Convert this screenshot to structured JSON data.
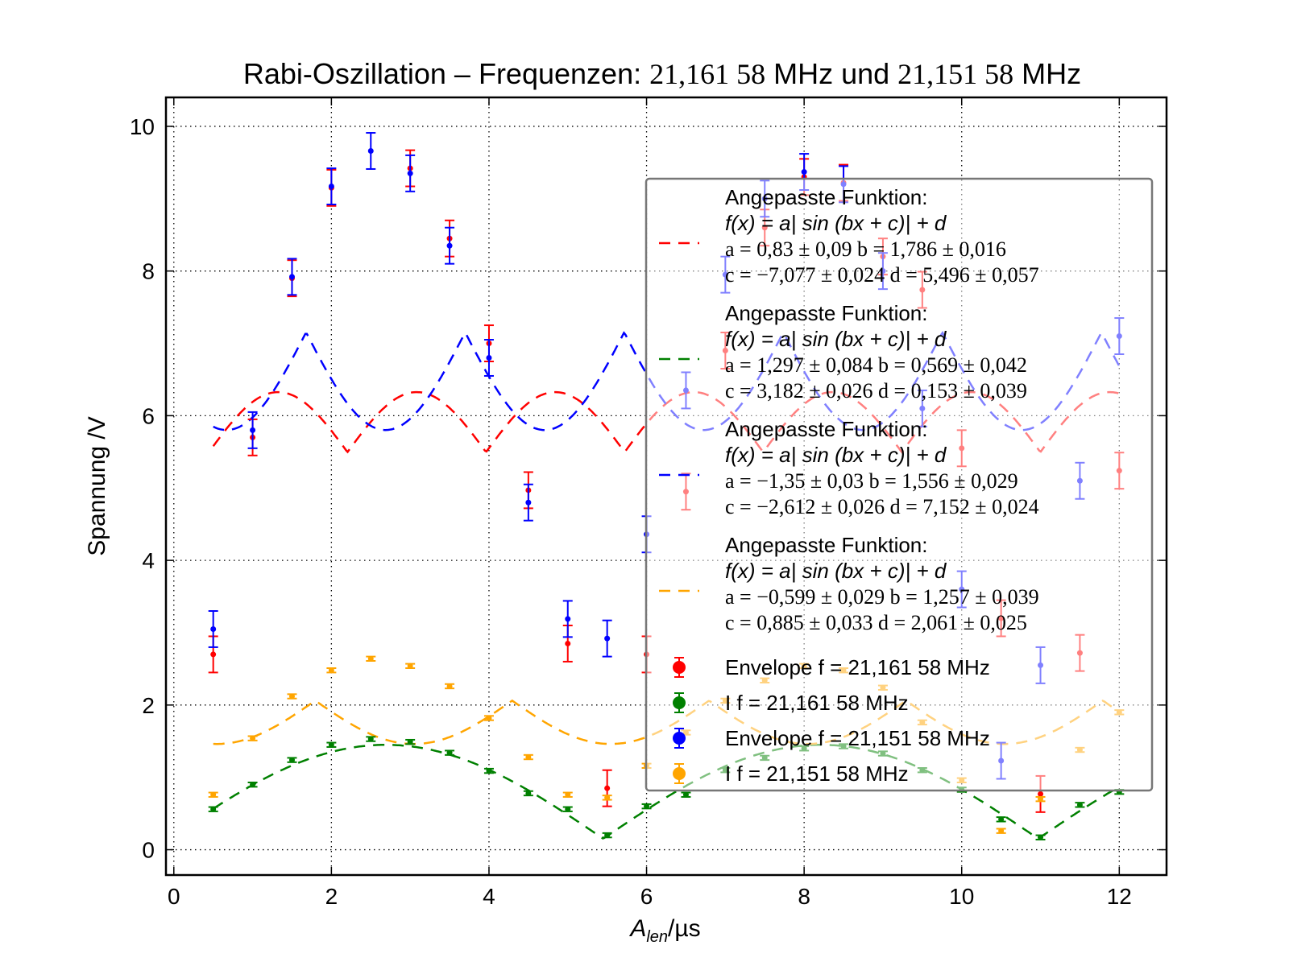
{
  "chart_data": {
    "type": "scatter",
    "title": "Rabi-Oszillation – Frequenzen: 21,161 58 MHz und 21,151 58 MHz",
    "title_parts": {
      "prefix": "Rabi-Oszillation – Frequenzen: ",
      "f1": "21,161 58",
      "unit1": " MHz und ",
      "f2": "21,151 58",
      "unit2": " MHz"
    },
    "xlabel": "A_len/µs",
    "xlabel_parts": {
      "var": "A",
      "sub": "len",
      "unit": "/µs"
    },
    "ylabel": "Spannung /V",
    "xlim": [
      -0.1,
      12.6
    ],
    "ylim": [
      -0.35,
      10.4
    ],
    "x_ticks": [
      "0",
      "2",
      "4",
      "6",
      "8",
      "10",
      "12"
    ],
    "y_ticks": [
      "0",
      "2",
      "4",
      "6",
      "8",
      "10"
    ],
    "grid": true,
    "legend_position": "right",
    "series": [
      {
        "name": "Envelope f = 21,161 58 MHz",
        "color": "#ff0000",
        "x": [
          0.5,
          1.0,
          1.5,
          2.0,
          3.0,
          3.5,
          4.0,
          4.5,
          5.0,
          5.5,
          6.0,
          6.5,
          7.0,
          7.5,
          8.0,
          8.5,
          9.0,
          9.5,
          10.0,
          10.5,
          11.0,
          11.5,
          12.0
        ],
        "y": [
          2.7,
          5.7,
          7.9,
          9.15,
          9.42,
          8.45,
          7.0,
          4.97,
          2.85,
          0.85,
          2.7,
          4.95,
          6.9,
          8.6,
          9.3,
          9.22,
          8.2,
          7.74,
          5.55,
          3.2,
          0.77,
          2.72,
          5.24
        ],
        "yerr": [
          0.25,
          0.25,
          0.25,
          0.25,
          0.25,
          0.25,
          0.25,
          0.25,
          0.25,
          0.25,
          0.25,
          0.25,
          0.25,
          0.25,
          0.25,
          0.25,
          0.25,
          0.25,
          0.25,
          0.25,
          0.25,
          0.25,
          0.25
        ]
      },
      {
        "name": "I f = 21,161 58 MHz",
        "color": "#008000",
        "x": [
          0.5,
          1.0,
          1.5,
          2.0,
          2.5,
          3.0,
          3.5,
          4.0,
          4.5,
          5.0,
          5.5,
          6.0,
          6.5,
          7.0,
          7.5,
          8.0,
          8.5,
          9.0,
          9.5,
          10.0,
          10.5,
          11.0,
          11.5,
          12.0
        ],
        "y": [
          0.56,
          0.9,
          1.24,
          1.45,
          1.53,
          1.49,
          1.34,
          1.09,
          0.78,
          0.56,
          0.2,
          0.6,
          0.76,
          1.1,
          1.27,
          1.4,
          1.43,
          1.33,
          1.1,
          0.83,
          0.42,
          0.17,
          0.62,
          0.8
        ],
        "yerr": [
          0.03,
          0.03,
          0.03,
          0.03,
          0.03,
          0.03,
          0.03,
          0.03,
          0.03,
          0.03,
          0.03,
          0.03,
          0.03,
          0.03,
          0.03,
          0.03,
          0.03,
          0.03,
          0.03,
          0.03,
          0.03,
          0.03,
          0.03,
          0.03
        ]
      },
      {
        "name": "Envelope f = 21,151 58 MHz",
        "color": "#0000ff",
        "x": [
          0.5,
          1.0,
          1.5,
          2.0,
          2.5,
          3.0,
          3.5,
          4.0,
          4.5,
          5.0,
          5.5,
          6.0,
          6.5,
          7.0,
          7.5,
          8.0,
          8.5,
          9.0,
          9.5,
          10.0,
          10.5,
          11.0,
          11.5,
          12.0
        ],
        "y": [
          3.05,
          5.8,
          7.92,
          9.17,
          9.66,
          9.35,
          8.35,
          6.8,
          4.8,
          3.19,
          2.92,
          4.36,
          6.35,
          7.95,
          9.0,
          9.37,
          9.2,
          8.0,
          6.1,
          3.6,
          1.23,
          2.55,
          5.1,
          7.1
        ],
        "yerr": [
          0.25,
          0.25,
          0.25,
          0.25,
          0.25,
          0.25,
          0.25,
          0.25,
          0.25,
          0.25,
          0.25,
          0.25,
          0.25,
          0.25,
          0.25,
          0.25,
          0.25,
          0.25,
          0.25,
          0.25,
          0.25,
          0.25,
          0.25,
          0.25
        ]
      },
      {
        "name": "I f = 21,151 58 MHz",
        "color": "#ffa500",
        "x": [
          0.5,
          1.0,
          1.5,
          2.0,
          2.5,
          3.0,
          3.5,
          4.0,
          4.5,
          5.0,
          5.5,
          6.0,
          6.5,
          7.0,
          7.5,
          8.0,
          8.5,
          9.0,
          9.5,
          10.0,
          10.5,
          11.0,
          11.5,
          12.0
        ],
        "y": [
          0.76,
          1.54,
          2.12,
          2.48,
          2.64,
          2.54,
          2.26,
          1.82,
          1.28,
          0.76,
          0.72,
          1.16,
          1.62,
          2.06,
          2.34,
          2.54,
          2.48,
          2.24,
          1.76,
          0.96,
          0.26,
          0.7,
          1.38,
          1.9
        ],
        "yerr": [
          0.03,
          0.03,
          0.03,
          0.03,
          0.03,
          0.03,
          0.03,
          0.03,
          0.03,
          0.03,
          0.03,
          0.03,
          0.03,
          0.03,
          0.03,
          0.03,
          0.03,
          0.03,
          0.03,
          0.03,
          0.03,
          0.03,
          0.03,
          0.03
        ]
      }
    ],
    "fits": [
      {
        "color": "#ff0000",
        "a": 0.83,
        "b": 1.786,
        "c": -7.077,
        "d": 5.496
      },
      {
        "color": "#008000",
        "a": 1.297,
        "b": 0.569,
        "c": 3.182,
        "d": 0.153
      },
      {
        "color": "#0000ff",
        "a": -1.35,
        "b": 1.556,
        "c": -2.612,
        "d": 7.152
      },
      {
        "color": "#ffa500",
        "a": -0.599,
        "b": 1.257,
        "c": 0.885,
        "d": 2.061
      }
    ],
    "fit_x_range": [
      0.5,
      12.0
    ],
    "legend": {
      "fit_entries": [
        {
          "title": "Angepasste Funktion:",
          "formula": "f(x) = a| sin (bx + c)| + d",
          "line1": "a = 0,83 ± 0,09     b = 1,786 ± 0,016",
          "line2": "c = −7,077 ± 0,024     d = 5,496 ± 0,057"
        },
        {
          "title": "Angepasste Funktion:",
          "formula": "f(x) = a| sin (bx + c)| + d",
          "line1": "a = 1,297 ± 0,084     b = 0,569 ± 0,042",
          "line2": "c = 3,182 ± 0,026     d = 0,153 ± 0,039"
        },
        {
          "title": "Angepasste Funktion:",
          "formula": "f(x) = a| sin (bx + c)| + d",
          "line1": "a = −1,35 ± 0,03     b = 1,556 ± 0,029",
          "line2": "c = −2,612 ± 0,026     d = 7,152 ± 0,024"
        },
        {
          "title": "Angepasste Funktion:",
          "formula": "f(x) = a| sin (bx + c)| + d",
          "line1": "a = −0,599 ± 0,029     b = 1,257 ± 0,039",
          "line2": "c = 0,885 ± 0,033     d = 2,061 ± 0,025"
        }
      ],
      "marker_entries": [
        {
          "label": "Envelope f = 21,161 58 MHz"
        },
        {
          "label": "I f = 21,161 58 MHz"
        },
        {
          "label": "Envelope f = 21,151 58 MHz"
        },
        {
          "label": "I f = 21,151 58 MHz"
        }
      ]
    }
  }
}
